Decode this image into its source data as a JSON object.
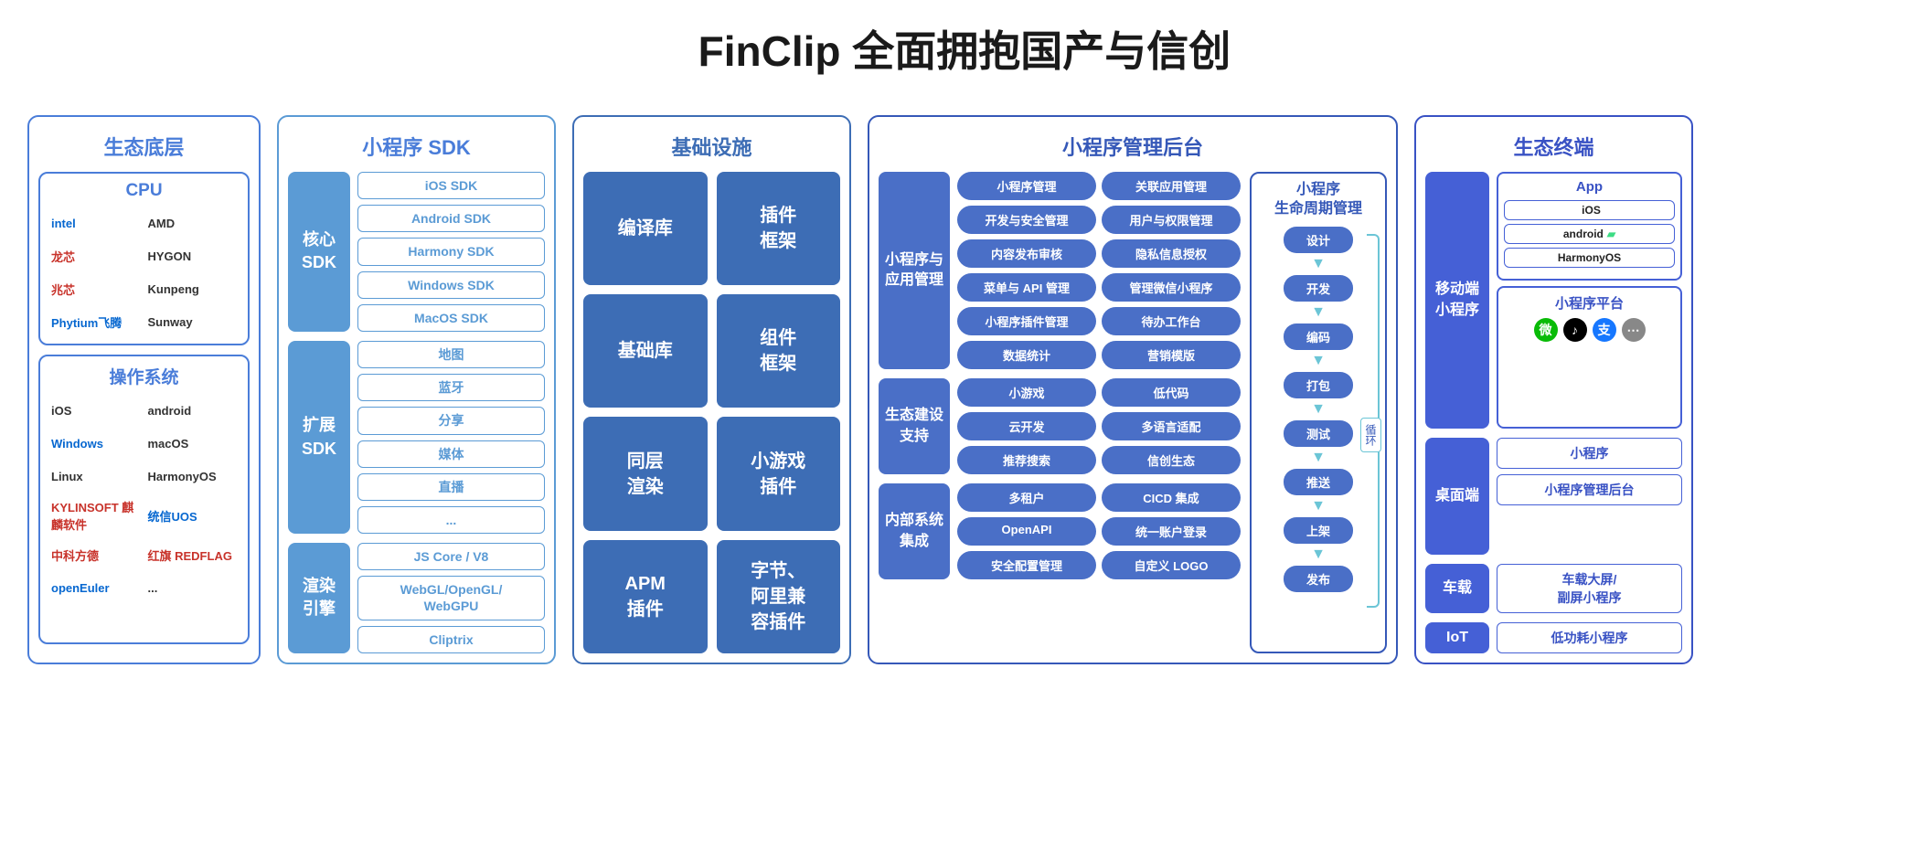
{
  "title": "FinClip 全面拥抱国产与信创",
  "col1": {
    "header": "生态底层",
    "cpu": {
      "title": "CPU",
      "items": [
        "intel",
        "AMD",
        "龙芯",
        "HYGON",
        "兆芯",
        "Kunpeng",
        "Phytium飞腾",
        "Sunway"
      ]
    },
    "os": {
      "title": "操作系统",
      "items": [
        "iOS",
        "android",
        "Windows",
        "macOS",
        "Linux",
        "HarmonyOS",
        "KYLINSOFT 麒麟软件",
        "统信UOS",
        "中科方德",
        "红旗 REDFLAG",
        "openEuler",
        "..."
      ]
    }
  },
  "col2": {
    "header": "小程序 SDK",
    "sections": [
      {
        "side": "核心\nSDK",
        "items": [
          "iOS SDK",
          "Android SDK",
          "Harmony SDK",
          "Windows SDK",
          "MacOS SDK"
        ]
      },
      {
        "side": "扩展\nSDK",
        "items": [
          "地图",
          "蓝牙",
          "分享",
          "媒体",
          "直播",
          "..."
        ]
      },
      {
        "side": "渲染\n引擎",
        "items": [
          "JS Core / V8",
          "WebGL/OpenGL/\nWebGPU",
          "Cliptrix"
        ]
      }
    ]
  },
  "col3": {
    "header": "基础设施",
    "items": [
      "编译库",
      "插件\n框架",
      "基础库",
      "组件\n框架",
      "同层\n渲染",
      "小游戏\n插件",
      "APM\n插件",
      "字节、\n阿里兼\n容插件"
    ]
  },
  "col4": {
    "header": "小程序管理后台",
    "sections": [
      {
        "side": "小程序与\n应用管理",
        "items": [
          "小程序管理",
          "关联应用管理",
          "开发与安全管理",
          "用户与权限管理",
          "内容发布审核",
          "隐私信息授权",
          "菜单与 API 管理",
          "管理微信小程序",
          "小程序插件管理",
          "待办工作台",
          "数据统计",
          "营销模版"
        ]
      },
      {
        "side": "生态建设\n支持",
        "items": [
          "小游戏",
          "低代码",
          "云开发",
          "多语言适配",
          "推荐搜索",
          "信创生态"
        ]
      },
      {
        "side": "内部系统\n集成",
        "items": [
          "多租户",
          "CICD 集成",
          "OpenAPI",
          "统一账户登录",
          "安全配置管理",
          "自定义 LOGO"
        ]
      }
    ],
    "lifecycle": {
      "title": "小程序\n生命周期管理",
      "steps": [
        "设计",
        "开发",
        "编码",
        "打包",
        "测试",
        "推送",
        "上架",
        "发布"
      ],
      "loop_label": "循环"
    }
  },
  "col5": {
    "header": "生态终端",
    "mobile": {
      "side": "移动端\n小程序",
      "app_title": "App",
      "app_os": [
        "iOS",
        "android",
        "HarmonyOS"
      ],
      "platform_title": "小程序平台",
      "platform_icons": [
        {
          "bg": "#09bb07",
          "txt": "微"
        },
        {
          "bg": "#000000",
          "txt": "♪"
        },
        {
          "bg": "#1677ff",
          "txt": "支"
        },
        {
          "bg": "#888888",
          "txt": "⋯"
        }
      ]
    },
    "desktop": {
      "side": "桌面端",
      "items": [
        "小程序",
        "小程序管理后台"
      ]
    },
    "car": {
      "side": "车载",
      "items": [
        "车载大屏/\n副屏小程序"
      ]
    },
    "iot": {
      "side": "IoT",
      "items": [
        "低功耗小程序"
      ]
    }
  }
}
